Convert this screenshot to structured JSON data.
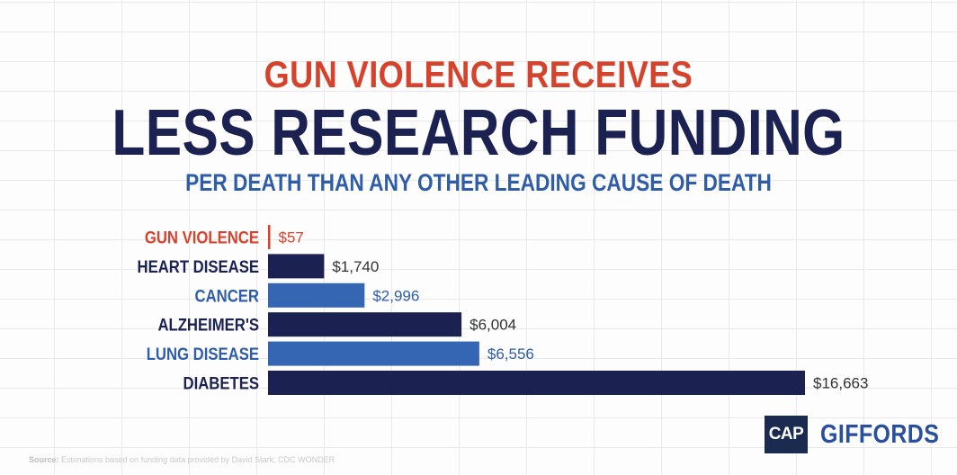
{
  "header": {
    "kicker": "GUN VIOLENCE RECEIVES",
    "headline": "LESS RESEARCH FUNDING",
    "subheadline": "PER DEATH THAN ANY OTHER LEADING CAUSE OF DEATH"
  },
  "chart_data": {
    "type": "bar",
    "orientation": "horizontal",
    "categories": [
      "GUN VIOLENCE",
      "HEART DISEASE",
      "CANCER",
      "ALZHEIMER'S",
      "LUNG DISEASE",
      "DIABETES"
    ],
    "values": [
      57,
      1740,
      2996,
      6004,
      6556,
      16663
    ],
    "value_labels": [
      "$57",
      "$1,740",
      "$2,996",
      "$6,004",
      "$6,556",
      "$16,663"
    ],
    "bar_colors": [
      "#d5432c",
      "#1b2150",
      "#3466b3",
      "#1b2150",
      "#3466b3",
      "#1b2150"
    ],
    "label_colors": [
      "#d5432c",
      "#1b2150",
      "#2f5da8",
      "#1b2150",
      "#2f5da8",
      "#1b2150"
    ],
    "value_label_colors": [
      "#d5432c",
      "#333333",
      "#2f5da8",
      "#333333",
      "#2f5da8",
      "#333333"
    ],
    "xlim": [
      0,
      16663
    ],
    "grid": true,
    "title": "",
    "xlabel": "",
    "ylabel": ""
  },
  "footer": {
    "source_label": "Source:",
    "source_text": " Estimations based on funding data provided by David Stark; CDC WONDER",
    "logo_cap": "CAP",
    "logo_giffords": "GIFFORDS"
  },
  "colors": {
    "accent_red": "#d5432c",
    "navy": "#1b2150",
    "blue": "#3466b3"
  }
}
